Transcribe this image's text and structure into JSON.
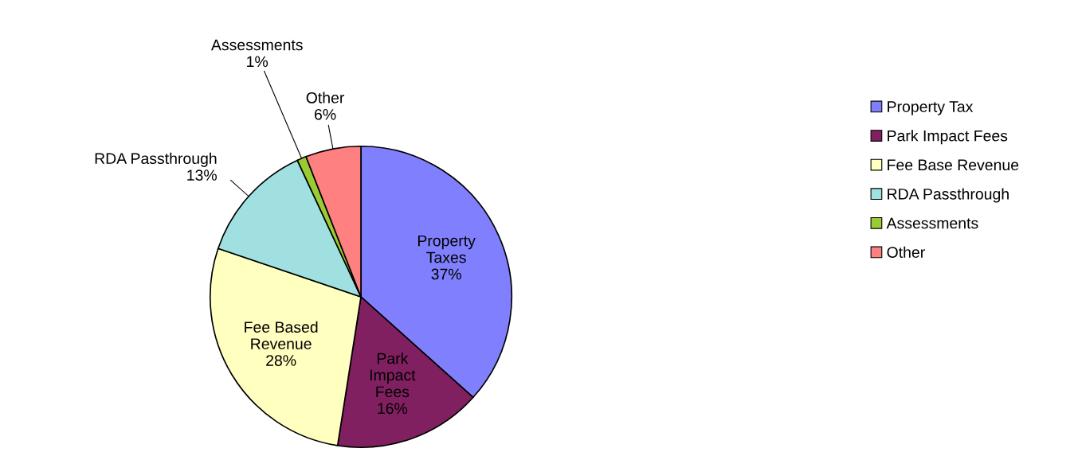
{
  "chart_data": {
    "type": "pie",
    "categories": [
      "Property Tax",
      "Park Impact Fees",
      "Fee Base Revenue",
      "RDA Passthrough",
      "Assessments",
      "Other"
    ],
    "values": [
      37,
      16,
      28,
      13,
      1,
      6
    ],
    "colors": [
      "#8080ff",
      "#802060",
      "#ffffc0",
      "#a0e0e0",
      "#99cc33",
      "#ff8080"
    ],
    "value_labels": [
      "Property\nTaxes\n37%",
      "Park\nImpact\nFees\n16%",
      "Fee Based\nRevenue\n28%",
      "RDA Passthrough\n13%",
      "Assessments\n1%",
      "Other\n6%"
    ],
    "legend": "right"
  }
}
